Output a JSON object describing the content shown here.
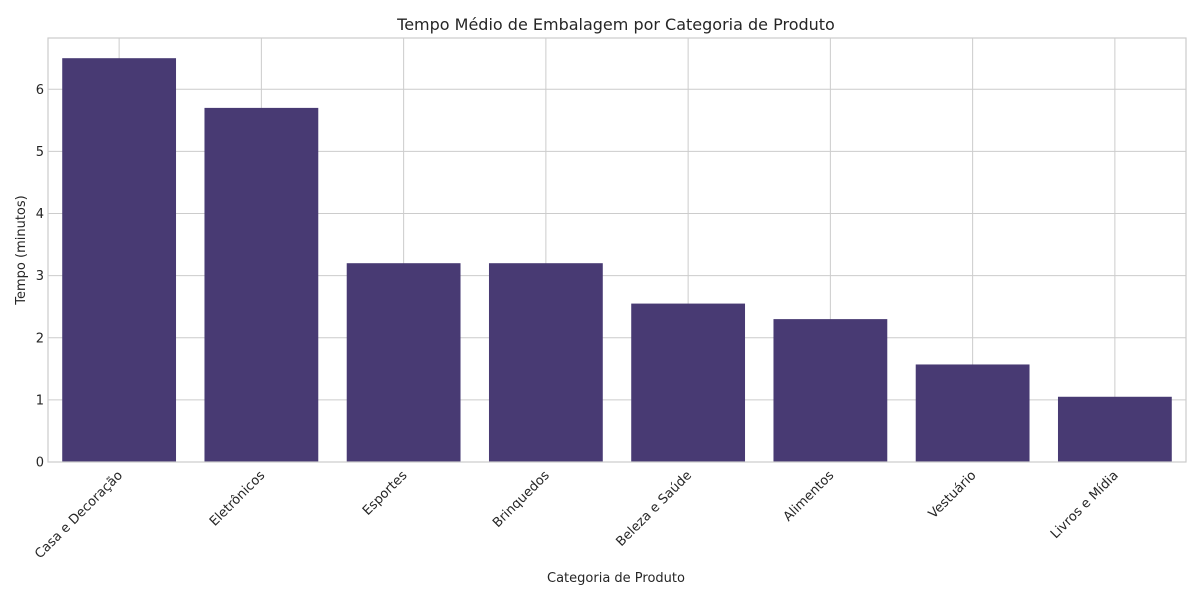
{
  "chart_data": {
    "type": "bar",
    "title": "Tempo Médio de Embalagem por Categoria de Produto",
    "xlabel": "Categoria de Produto",
    "ylabel": "Tempo (minutos)",
    "categories": [
      "Casa e Decoração",
      "Eletrônicos",
      "Esportes",
      "Brinquedos",
      "Beleza e Saúde",
      "Alimentos",
      "Vestuário",
      "Livros e Mídia"
    ],
    "values": [
      6.5,
      5.7,
      3.2,
      3.2,
      2.55,
      2.3,
      1.57,
      1.05
    ],
    "ylim": [
      0,
      6.825
    ],
    "yticks": [
      0,
      1,
      2,
      3,
      4,
      5,
      6
    ],
    "grid": true,
    "bar_color": "#483a73",
    "grid_color": "#cccccc"
  }
}
